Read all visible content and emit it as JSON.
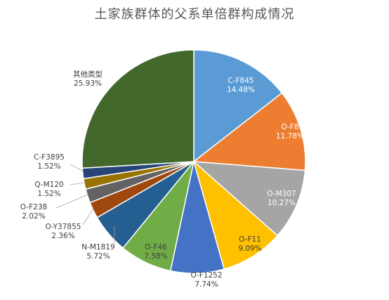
{
  "chart_data": {
    "type": "pie",
    "title": "土家族群体的父系单倍群构成情况",
    "slices": [
      {
        "label": "C-F845",
        "value": 14.48,
        "value_label": "14.48%",
        "color": "#5b9bd5",
        "label_pos": "inside"
      },
      {
        "label": "O-F8",
        "value": 11.78,
        "value_label": "11.78%",
        "color": "#ed7d31",
        "label_pos": "inside"
      },
      {
        "label": "O-M307",
        "value": 10.27,
        "value_label": "10.27%",
        "color": "#a5a5a5",
        "label_pos": "inside"
      },
      {
        "label": "O-F11",
        "value": 9.09,
        "value_label": "9.09%",
        "color": "#ffc000",
        "label_pos": "inside"
      },
      {
        "label": "O-F1252",
        "value": 7.74,
        "value_label": "7.74%",
        "color": "#4472c4",
        "label_pos": "edge"
      },
      {
        "label": "O-F46",
        "value": 7.58,
        "value_label": "7.58%",
        "color": "#70ad47",
        "label_pos": "inside"
      },
      {
        "label": "N-M1819",
        "value": 5.72,
        "value_label": "5.72%",
        "color": "#255e91",
        "label_pos": "outside"
      },
      {
        "label": "O-Y37855",
        "value": 2.36,
        "value_label": "2.36%",
        "color": "#9e480e",
        "label_pos": "outside"
      },
      {
        "label": "O-F238",
        "value": 2.02,
        "value_label": "2.02%",
        "color": "#636363",
        "label_pos": "outside"
      },
      {
        "label": "Q-M120",
        "value": 1.52,
        "value_label": "1.52%",
        "color": "#997300",
        "label_pos": "outside"
      },
      {
        "label": "C-F3895",
        "value": 1.52,
        "value_label": "1.52%",
        "color": "#264478",
        "label_pos": "outside"
      },
      {
        "label": "其他类型",
        "value": 25.93,
        "value_label": "25.93%",
        "color": "#43682b",
        "label_pos": "inside"
      }
    ],
    "legend": "none"
  }
}
